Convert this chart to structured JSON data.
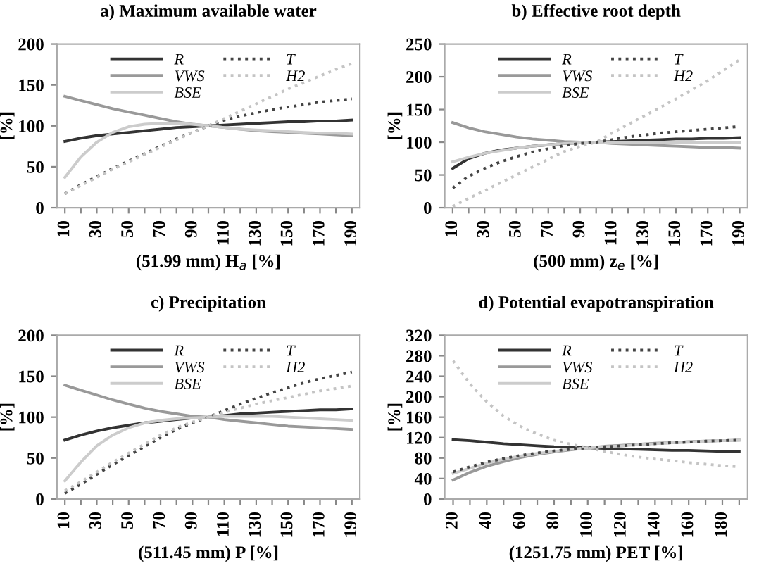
{
  "chart_data": [
    {
      "type": "line",
      "title": "a) Maximum available water",
      "xlabel": "(51.99 mm) H$_{a}$ [%]",
      "ylabel": "[%]",
      "x": [
        10,
        20,
        30,
        40,
        50,
        60,
        70,
        80,
        90,
        100,
        110,
        120,
        130,
        140,
        150,
        160,
        170,
        180,
        190
      ],
      "xlim": [
        5,
        195
      ],
      "xticks": [
        10,
        {
          "value": 20,
          "label": null
        },
        30,
        {
          "value": 40,
          "label": null
        },
        50,
        {
          "value": 60,
          "label": null
        },
        70,
        {
          "value": 80,
          "label": null
        },
        90,
        {
          "value": 100,
          "label": null
        },
        110,
        {
          "value": 120,
          "label": null
        },
        130,
        {
          "value": 140,
          "label": null
        },
        150,
        {
          "value": 160,
          "label": null
        },
        170,
        {
          "value": 180,
          "label": null
        },
        190
      ],
      "ylim": [
        0,
        200
      ],
      "yticks": [
        0,
        50,
        100,
        150,
        200
      ],
      "grid": false,
      "legend": "top",
      "series": [
        {
          "name": "R",
          "color": "#333333",
          "line_style": "solid",
          "values": [
            81,
            85,
            88,
            90,
            92,
            94,
            96,
            98,
            99,
            100,
            101,
            102,
            103,
            104,
            105,
            105,
            106,
            106,
            107
          ]
        },
        {
          "name": "T",
          "color": "#444444",
          "line_style": "dotted",
          "values": [
            17,
            28,
            38,
            48,
            57,
            66,
            75,
            84,
            92,
            100,
            107,
            112,
            116,
            120,
            123,
            126,
            129,
            131,
            133
          ]
        },
        {
          "name": "VWS",
          "color": "#999999",
          "line_style": "solid",
          "values": [
            136,
            131,
            126,
            121,
            117,
            113,
            109,
            105,
            102,
            100,
            98,
            96,
            94,
            93,
            92,
            91,
            90,
            89,
            88
          ]
        },
        {
          "name": "H2",
          "color": "#c4c4c4",
          "line_style": "dotted",
          "values": [
            17,
            27,
            37,
            47,
            56,
            65,
            74,
            83,
            92,
            100,
            109,
            118,
            127,
            136,
            145,
            153,
            161,
            169,
            176
          ]
        },
        {
          "name": "BSE",
          "color": "#cccccc",
          "line_style": "solid",
          "values": [
            37,
            62,
            80,
            92,
            99,
            102,
            103,
            103,
            102,
            100,
            98,
            96,
            95,
            94,
            93,
            92,
            91,
            91,
            90
          ]
        }
      ]
    },
    {
      "type": "line",
      "title": "b) Effective root depth",
      "xlabel": "(500 mm) z$_{e}$ [%]",
      "ylabel": "[%]",
      "x": [
        10,
        20,
        30,
        40,
        50,
        60,
        70,
        80,
        90,
        100,
        110,
        120,
        130,
        140,
        150,
        160,
        170,
        180,
        190
      ],
      "xlim": [
        5,
        195
      ],
      "xticks": [
        10,
        {
          "value": 20,
          "label": null
        },
        30,
        {
          "value": 40,
          "label": null
        },
        50,
        {
          "value": 60,
          "label": null
        },
        70,
        {
          "value": 80,
          "label": null
        },
        90,
        {
          "value": 100,
          "label": null
        },
        110,
        {
          "value": 120,
          "label": null
        },
        130,
        {
          "value": 140,
          "label": null
        },
        150,
        {
          "value": 160,
          "label": null
        },
        170,
        {
          "value": 180,
          "label": null
        },
        190
      ],
      "ylim": [
        0,
        250
      ],
      "yticks": [
        0,
        50,
        100,
        150,
        200,
        250
      ],
      "grid": false,
      "legend": "top",
      "series": [
        {
          "name": "R",
          "color": "#333333",
          "line_style": "solid",
          "values": [
            60,
            75,
            83,
            88,
            91,
            94,
            96,
            98,
            99,
            100,
            101,
            102,
            103,
            104,
            105,
            105,
            106,
            106,
            107
          ]
        },
        {
          "name": "T",
          "color": "#444444",
          "line_style": "dotted",
          "values": [
            30,
            48,
            60,
            70,
            78,
            85,
            90,
            95,
            98,
            100,
            104,
            108,
            111,
            114,
            116,
            118,
            120,
            122,
            124
          ]
        },
        {
          "name": "VWS",
          "color": "#999999",
          "line_style": "solid",
          "values": [
            130,
            122,
            116,
            112,
            108,
            105,
            103,
            101,
            100,
            100,
            98,
            97,
            96,
            95,
            94,
            93,
            92,
            92,
            91
          ]
        },
        {
          "name": "H2",
          "color": "#c4c4c4",
          "line_style": "dotted",
          "values": [
            2,
            14,
            26,
            38,
            50,
            62,
            74,
            86,
            94,
            100,
            114,
            127,
            140,
            153,
            166,
            180,
            194,
            210,
            226
          ]
        },
        {
          "name": "BSE",
          "color": "#cccccc",
          "line_style": "solid",
          "values": [
            70,
            77,
            83,
            87,
            91,
            94,
            96,
            98,
            99,
            100,
            100,
            100,
            100,
            100,
            100,
            100,
            100,
            100,
            100
          ]
        }
      ]
    },
    {
      "type": "line",
      "title": "c) Precipitation",
      "xlabel": "(511.45 mm) P [%]",
      "ylabel": "[%]",
      "x": [
        10,
        20,
        30,
        40,
        50,
        60,
        70,
        80,
        90,
        100,
        110,
        120,
        130,
        140,
        150,
        160,
        170,
        180,
        190
      ],
      "xlim": [
        5,
        195
      ],
      "xticks": [
        10,
        {
          "value": 20,
          "label": null
        },
        30,
        {
          "value": 40,
          "label": null
        },
        50,
        {
          "value": 60,
          "label": null
        },
        70,
        {
          "value": 80,
          "label": null
        },
        90,
        {
          "value": 100,
          "label": null
        },
        110,
        {
          "value": 120,
          "label": null
        },
        130,
        {
          "value": 140,
          "label": null
        },
        150,
        {
          "value": 160,
          "label": null
        },
        170,
        {
          "value": 180,
          "label": null
        },
        190
      ],
      "ylim": [
        0,
        200
      ],
      "yticks": [
        0,
        50,
        100,
        150,
        200
      ],
      "grid": false,
      "legend": "top",
      "series": [
        {
          "name": "R",
          "color": "#333333",
          "line_style": "solid",
          "values": [
            72,
            78,
            83,
            87,
            90,
            93,
            95,
            97,
            99,
            100,
            102,
            104,
            105,
            106,
            107,
            108,
            109,
            109,
            110
          ]
        },
        {
          "name": "T",
          "color": "#444444",
          "line_style": "dotted",
          "values": [
            7,
            18,
            30,
            42,
            53,
            64,
            75,
            85,
            93,
            100,
            108,
            116,
            123,
            130,
            136,
            142,
            147,
            151,
            155
          ]
        },
        {
          "name": "VWS",
          "color": "#999999",
          "line_style": "solid",
          "values": [
            139,
            133,
            127,
            121,
            116,
            111,
            107,
            104,
            101,
            100,
            97,
            95,
            93,
            91,
            89,
            88,
            87,
            86,
            85
          ]
        },
        {
          "name": "H2",
          "color": "#c4c4c4",
          "line_style": "dotted",
          "values": [
            10,
            21,
            33,
            45,
            56,
            67,
            78,
            87,
            94,
            100,
            106,
            111,
            116,
            120,
            124,
            128,
            132,
            135,
            138
          ]
        },
        {
          "name": "BSE",
          "color": "#cccccc",
          "line_style": "solid",
          "values": [
            22,
            45,
            65,
            78,
            87,
            93,
            96,
            98,
            99,
            100,
            101,
            101,
            101,
            101,
            100,
            99,
            98,
            97,
            96
          ]
        }
      ]
    },
    {
      "type": "line",
      "title": "d) Potential evapotranspiration",
      "xlabel": "(1251.75 mm) PET [%]",
      "ylabel": "[%]",
      "x": [
        20,
        30,
        40,
        50,
        60,
        70,
        80,
        90,
        100,
        110,
        120,
        130,
        140,
        150,
        160,
        170,
        180,
        190
      ],
      "xlim": [
        15,
        195
      ],
      "xticks": [
        20,
        {
          "value": 30,
          "label": null
        },
        40,
        {
          "value": 50,
          "label": null
        },
        60,
        {
          "value": 70,
          "label": null
        },
        80,
        {
          "value": 90,
          "label": null
        },
        100,
        {
          "value": 110,
          "label": null
        },
        120,
        {
          "value": 130,
          "label": null
        },
        140,
        {
          "value": 150,
          "label": null
        },
        160,
        {
          "value": 170,
          "label": null
        },
        180,
        {
          "value": 190,
          "label": null
        }
      ],
      "ylim": [
        0,
        320
      ],
      "yticks": [
        0,
        40,
        80,
        120,
        160,
        200,
        240,
        280,
        320
      ],
      "grid": false,
      "legend": "top",
      "series": [
        {
          "name": "R",
          "color": "#333333",
          "line_style": "solid",
          "values": [
            116,
            114,
            111,
            108,
            106,
            104,
            102,
            101,
            100,
            99,
            98,
            97,
            96,
            95,
            95,
            94,
            93,
            93
          ]
        },
        {
          "name": "T",
          "color": "#444444",
          "line_style": "dotted",
          "values": [
            53,
            63,
            72,
            79,
            85,
            90,
            94,
            97,
            100,
            102,
            104,
            106,
            108,
            110,
            111,
            113,
            114,
            115
          ]
        },
        {
          "name": "VWS",
          "color": "#999999",
          "line_style": "solid",
          "values": [
            37,
            52,
            64,
            73,
            81,
            87,
            92,
            96,
            100,
            103,
            105,
            107,
            109,
            110,
            112,
            113,
            114,
            115
          ]
        },
        {
          "name": "H2",
          "color": "#c4c4c4",
          "line_style": "dotted",
          "values": [
            270,
            225,
            190,
            162,
            142,
            127,
            115,
            107,
            100,
            93,
            87,
            82,
            78,
            75,
            71,
            68,
            65,
            63
          ]
        },
        {
          "name": "BSE",
          "color": "#cccccc",
          "line_style": "solid",
          "values": [
            50,
            60,
            70,
            78,
            84,
            89,
            93,
            97,
            100,
            102,
            104,
            106,
            108,
            110,
            111,
            113,
            114,
            115
          ]
        }
      ]
    }
  ]
}
